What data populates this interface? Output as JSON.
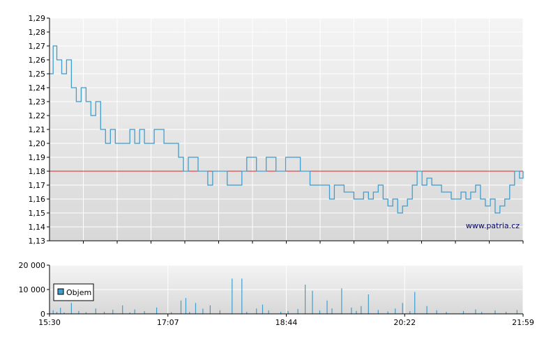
{
  "colors": {
    "price_line": "#3f9ecf",
    "reference_line": "#e02020",
    "volume_bar": "#3f9ecf",
    "grid": "#ffffff",
    "plot_bg_top": "#f4f4f4",
    "plot_bg_bottom": "#d8d8d8",
    "axis": "#000000"
  },
  "watermark": "www.patria.cz",
  "chart_data": [
    {
      "type": "line",
      "title": "",
      "xlabel": "",
      "ylabel": "",
      "ylim": [
        1.13,
        1.29
      ],
      "yticks": [
        "1,29",
        "1,28",
        "1,27",
        "1,26",
        "1,25",
        "1,24",
        "1,23",
        "1,22",
        "1,21",
        "1,20",
        "1,19",
        "1,18",
        "1,17",
        "1,16",
        "1,15",
        "1,14",
        "1,13"
      ],
      "reference_line": 1.18,
      "grid": true,
      "series": [
        {
          "x_minutes_from_open": [
            0,
            3,
            6,
            10,
            14,
            18,
            22,
            26,
            30,
            34,
            38,
            42,
            46,
            50,
            54,
            58,
            62,
            66,
            70,
            74,
            78,
            82,
            86,
            90,
            94,
            98,
            102,
            106,
            110,
            114,
            118,
            122,
            126,
            130,
            134,
            138,
            142,
            146,
            150,
            154,
            158,
            162,
            166,
            170,
            174,
            178,
            182,
            186,
            190,
            194,
            198,
            202,
            206,
            210,
            214,
            218,
            222,
            226,
            230,
            234,
            238,
            242,
            246,
            250,
            254,
            258,
            262,
            266,
            270,
            274,
            278,
            282,
            286,
            290,
            294,
            298,
            302,
            306,
            310,
            314,
            318,
            322,
            326,
            330,
            334,
            338,
            342,
            346,
            350,
            354,
            358,
            362,
            366,
            370,
            374,
            378,
            382,
            386,
            389
          ],
          "values": [
            1.25,
            1.27,
            1.26,
            1.25,
            1.26,
            1.24,
            1.23,
            1.24,
            1.23,
            1.22,
            1.23,
            1.21,
            1.2,
            1.21,
            1.2,
            1.2,
            1.2,
            1.21,
            1.2,
            1.21,
            1.2,
            1.2,
            1.21,
            1.21,
            1.2,
            1.2,
            1.2,
            1.19,
            1.18,
            1.19,
            1.19,
            1.18,
            1.18,
            1.17,
            1.18,
            1.18,
            1.18,
            1.17,
            1.17,
            1.17,
            1.18,
            1.19,
            1.19,
            1.18,
            1.18,
            1.19,
            1.19,
            1.18,
            1.18,
            1.19,
            1.19,
            1.19,
            1.18,
            1.18,
            1.17,
            1.17,
            1.17,
            1.17,
            1.16,
            1.17,
            1.17,
            1.165,
            1.165,
            1.16,
            1.16,
            1.165,
            1.16,
            1.165,
            1.17,
            1.16,
            1.155,
            1.16,
            1.15,
            1.155,
            1.16,
            1.17,
            1.18,
            1.17,
            1.175,
            1.17,
            1.17,
            1.165,
            1.165,
            1.16,
            1.16,
            1.165,
            1.16,
            1.165,
            1.17,
            1.16,
            1.155,
            1.16,
            1.15,
            1.155,
            1.16,
            1.17,
            1.18,
            1.175,
            1.18
          ]
        }
      ]
    },
    {
      "type": "bar",
      "title": "",
      "xlabel": "",
      "ylabel": "",
      "ylim": [
        0,
        20000
      ],
      "yticks": [
        "20 000",
        "10 000",
        "0"
      ],
      "xticks": [
        "15:30",
        "17:07",
        "18:44",
        "20:22",
        "21:59"
      ],
      "legend": {
        "label": "Objem",
        "placement": "left"
      },
      "grid": true,
      "series": [
        {
          "name": "Objem",
          "x_minutes_from_open": [
            3,
            6,
            9,
            12,
            18,
            24,
            30,
            38,
            45,
            52,
            60,
            66,
            70,
            78,
            88,
            100,
            108,
            112,
            115,
            120,
            126,
            132,
            140,
            150,
            158,
            162,
            170,
            175,
            180,
            190,
            196,
            204,
            210,
            216,
            222,
            228,
            232,
            240,
            248,
            252,
            256,
            262,
            270,
            278,
            284,
            290,
            296,
            300,
            310,
            318,
            326,
            340,
            350,
            355,
            366,
            375,
            384
          ],
          "values": [
            1500,
            800,
            2500,
            600,
            4500,
            1200,
            700,
            2200,
            900,
            1700,
            3500,
            600,
            1800,
            1100,
            2600,
            700,
            5500,
            6500,
            800,
            4500,
            2100,
            3500,
            1500,
            14500,
            14500,
            900,
            2200,
            3800,
            1500,
            900,
            1200,
            2000,
            12000,
            9500,
            1400,
            5500,
            2200,
            10500,
            2600,
            1200,
            3200,
            8000,
            1600,
            1000,
            2200,
            4500,
            1100,
            9000,
            3200,
            1500,
            800,
            1200,
            1800,
            800,
            1400,
            900,
            1600
          ]
        }
      ]
    }
  ]
}
